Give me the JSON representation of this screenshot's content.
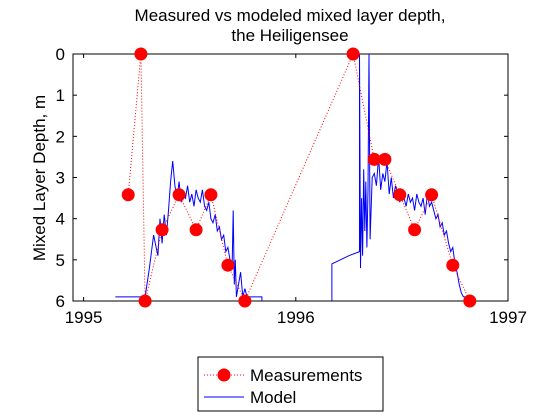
{
  "chart_data": {
    "type": "line",
    "title": [
      "Measured vs modeled mixed layer depth,",
      "the Heiligensee"
    ],
    "xlabel": "",
    "ylabel": "Mixed Layer Depth, m",
    "xlim": [
      1994.95,
      1997.0
    ],
    "ylim": [
      0,
      6
    ],
    "y_reversed": true,
    "grid": false,
    "x_ticks": [
      1995,
      1996,
      1997
    ],
    "x_tick_labels": [
      "1995",
      "1996",
      "1997"
    ],
    "y_ticks": [
      0,
      1,
      2,
      3,
      4,
      5,
      6
    ],
    "y_tick_labels": [
      "0",
      "1",
      "2",
      "3",
      "4",
      "5",
      "6"
    ],
    "legend_position": "bottom-center",
    "series": [
      {
        "name": "Measurements",
        "style": "dotted-markers",
        "color": "#ff0000",
        "x": [
          1995.21,
          1995.27,
          1995.29,
          1995.37,
          1995.45,
          1995.53,
          1995.6,
          1995.68,
          1995.76,
          1996.27,
          1996.37,
          1996.42,
          1996.49,
          1996.56,
          1996.64,
          1996.74,
          1996.82
        ],
        "y": [
          3.42,
          0.0,
          6.0,
          4.27,
          3.42,
          4.27,
          3.42,
          5.13,
          6.0,
          0.0,
          2.56,
          2.56,
          3.42,
          4.27,
          3.42,
          5.13,
          6.0
        ]
      },
      {
        "name": "Model",
        "style": "line",
        "color": "#0000ff",
        "x": [
          1995.15,
          1995.27,
          1995.29,
          1995.31,
          1995.33,
          1995.35,
          1995.36,
          1995.37,
          1995.38,
          1995.39,
          1995.4,
          1995.41,
          1995.42,
          1995.43,
          1995.44,
          1995.45,
          1995.46,
          1995.47,
          1995.48,
          1995.49,
          1995.5,
          1995.51,
          1995.52,
          1995.53,
          1995.54,
          1995.55,
          1995.56,
          1995.57,
          1995.58,
          1995.59,
          1995.6,
          1995.61,
          1995.62,
          1995.63,
          1995.64,
          1995.65,
          1995.66,
          1995.67,
          1995.68,
          1995.69,
          1995.7,
          1995.705,
          1995.71,
          1995.715,
          1995.72,
          1995.73,
          1995.74,
          1995.75,
          1995.76,
          1995.77,
          1995.8,
          1995.84,
          1995.84,
          null,
          1996.17,
          1996.17,
          1996.25,
          1996.3,
          1996.3,
          1996.305,
          1996.31,
          1996.315,
          1996.32,
          1996.325,
          1996.33,
          1996.335,
          1996.34,
          1996.345,
          1996.35,
          1996.36,
          1996.37,
          1996.38,
          1996.39,
          1996.4,
          1996.41,
          1996.42,
          1996.43,
          1996.44,
          1996.45,
          1996.46,
          1996.47,
          1996.48,
          1996.49,
          1996.5,
          1996.51,
          1996.52,
          1996.53,
          1996.54,
          1996.55,
          1996.56,
          1996.57,
          1996.58,
          1996.59,
          1996.6,
          1996.61,
          1996.62,
          1996.63,
          1996.64,
          1996.65,
          1996.66,
          1996.67,
          1996.68,
          1996.69,
          1996.7,
          1996.71,
          1996.72,
          1996.73,
          1996.74,
          1996.75,
          1996.76,
          1996.77,
          1996.78,
          1996.79,
          1996.8,
          1996.81,
          1996.82
        ],
        "y": [
          5.9,
          5.9,
          5.9,
          5.2,
          4.4,
          4.9,
          4.0,
          4.6,
          3.9,
          4.4,
          3.8,
          3.1,
          2.6,
          3.2,
          3.5,
          3.1,
          3.6,
          3.4,
          3.5,
          3.2,
          3.6,
          3.4,
          3.7,
          3.3,
          3.5,
          3.6,
          3.3,
          3.7,
          3.8,
          3.6,
          4.0,
          4.1,
          3.9,
          4.3,
          4.2,
          4.5,
          4.4,
          4.8,
          4.7,
          5.0,
          5.2,
          3.8,
          5.6,
          5.0,
          5.9,
          5.6,
          5.3,
          5.9,
          5.7,
          5.9,
          5.9,
          5.9,
          6.0,
          null,
          6.0,
          5.1,
          4.9,
          4.8,
          0.0,
          5.2,
          3.5,
          4.9,
          2.8,
          4.3,
          3.1,
          4.7,
          3.3,
          0.0,
          4.5,
          3.0,
          2.9,
          3.2,
          2.5,
          3.3,
          2.9,
          3.1,
          2.6,
          3.4,
          3.0,
          3.5,
          3.2,
          3.4,
          3.6,
          3.3,
          3.5,
          3.7,
          3.4,
          3.6,
          3.5,
          3.8,
          3.4,
          3.6,
          3.7,
          3.5,
          3.9,
          3.4,
          3.7,
          3.6,
          3.8,
          4.0,
          3.9,
          4.2,
          4.1,
          4.4,
          4.3,
          4.6,
          4.8,
          4.7,
          5.1,
          5.3,
          5.6,
          5.8,
          5.9,
          5.9,
          5.9,
          6.0
        ]
      }
    ]
  },
  "colors": {
    "measurements": "#ff0000",
    "model": "#0000ff",
    "axes": "#000000",
    "background": "#ffffff"
  }
}
